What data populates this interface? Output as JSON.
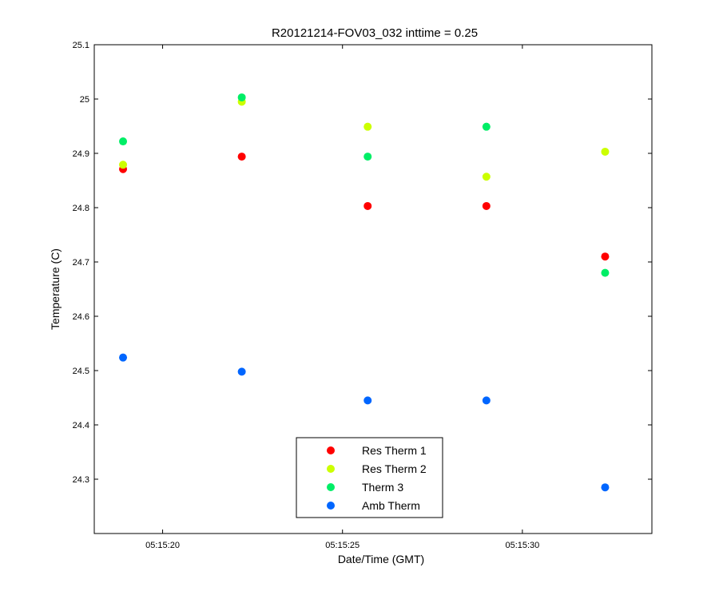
{
  "chart_data": {
    "type": "scatter",
    "title": "R20121214-FOV03_032 inttime = 0.25",
    "xlabel": "Date/Time (GMT)",
    "ylabel": "Temperature (C)",
    "x_unit": "time",
    "x_ticks": [
      "05:15:20",
      "05:15:25",
      "05:15:30"
    ],
    "xlim": [
      "05:15:18.1",
      "05:15:33.6"
    ],
    "ylim": [
      24.2,
      25.1
    ],
    "y_ticks": [
      "24.3",
      "24.4",
      "24.5",
      "24.6",
      "24.7",
      "24.8",
      "24.9",
      "25",
      "25.1"
    ],
    "x": [
      "05:15:18.9",
      "05:15:22.2",
      "05:15:25.7",
      "05:15:29.0",
      "05:15:32.3"
    ],
    "series": [
      {
        "name": "Res Therm 1",
        "color": "#ff0000",
        "values": [
          24.871,
          24.894,
          24.803,
          24.803,
          24.71
        ]
      },
      {
        "name": "Res Therm 2",
        "color": "#ccff00",
        "values": [
          24.879,
          24.995,
          24.949,
          24.857,
          24.903
        ]
      },
      {
        "name": "Therm 3",
        "color": "#00ee66",
        "values": [
          24.922,
          25.003,
          24.894,
          24.949,
          24.68
        ]
      },
      {
        "name": "Amb Therm",
        "color": "#0066ff",
        "values": [
          24.524,
          24.498,
          24.445,
          24.445,
          24.285
        ]
      }
    ],
    "grid": false,
    "legend_position": "bottom-center"
  }
}
